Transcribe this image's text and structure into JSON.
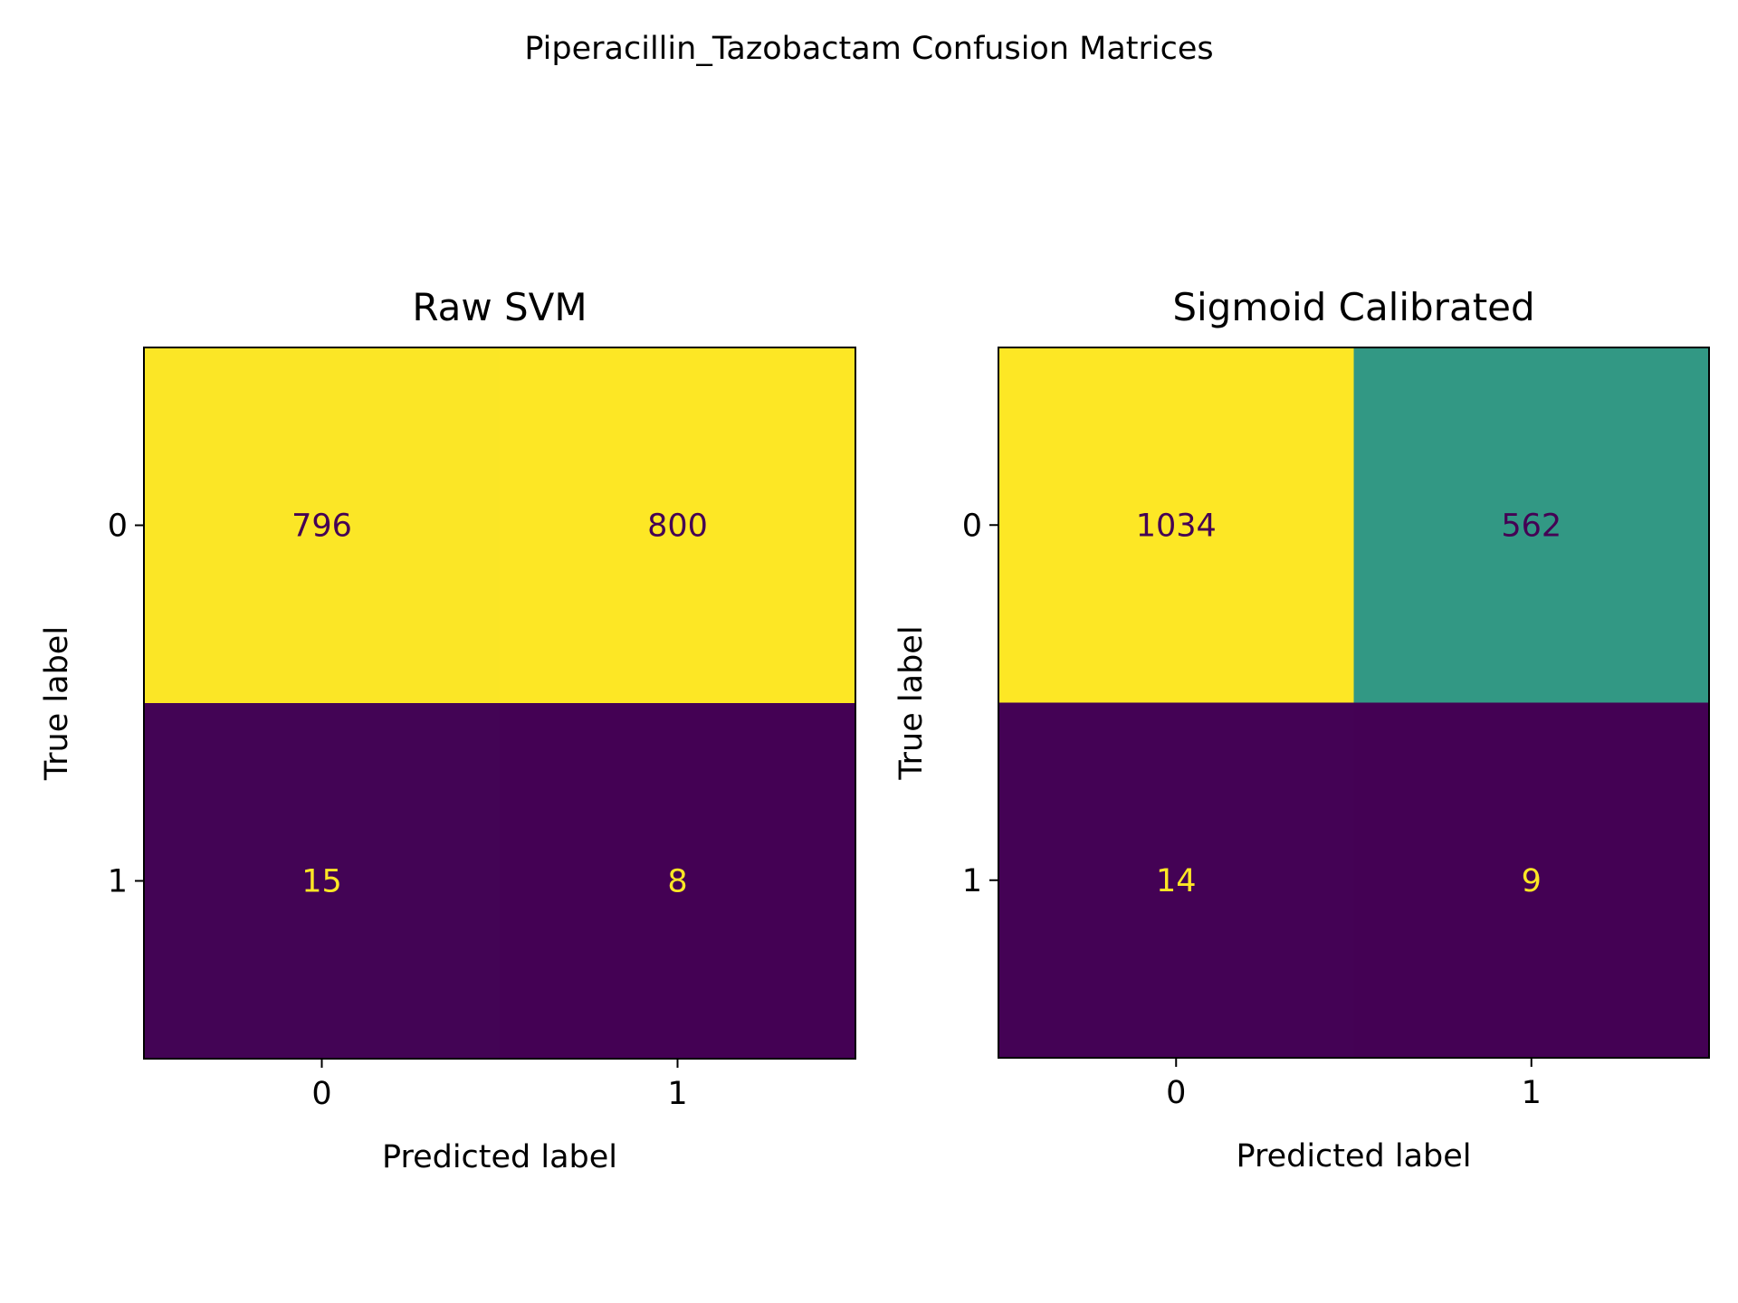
{
  "figure": {
    "suptitle": "Piperacillin_Tazobactam Confusion Matrices"
  },
  "chart_data": [
    {
      "type": "heatmap",
      "title": "Raw SVM",
      "xlabel": "Predicted label",
      "ylabel": "True label",
      "x_ticks": [
        "0",
        "1"
      ],
      "y_ticks": [
        "0",
        "1"
      ],
      "matrix": [
        [
          796,
          800
        ],
        [
          15,
          8
        ]
      ],
      "colormap": "viridis",
      "grid": false
    },
    {
      "type": "heatmap",
      "title": "Sigmoid Calibrated",
      "xlabel": "Predicted label",
      "ylabel": "True label",
      "x_ticks": [
        "0",
        "1"
      ],
      "y_ticks": [
        "0",
        "1"
      ],
      "matrix": [
        [
          1034,
          562
        ],
        [
          14,
          9
        ]
      ],
      "colormap": "viridis",
      "grid": false
    }
  ],
  "colors": {
    "viridis_low": "#440154",
    "viridis_mid": "#21918c",
    "viridis_high": "#fde725",
    "axis": "#000000",
    "background": "#ffffff"
  }
}
